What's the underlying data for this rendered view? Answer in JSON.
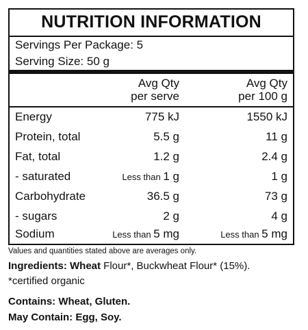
{
  "panel": {
    "title": "NUTRITION INFORMATION",
    "servings_per_package": "Servings Per Package: 5",
    "serving_size": "Serving Size: 50 g"
  },
  "columns": {
    "per_serve_line1": "Avg Qty",
    "per_serve_line2": "per serve",
    "per_100g_line1": "Avg Qty",
    "per_100g_line2": "per 100 g"
  },
  "rows": [
    {
      "label": "Energy",
      "serve_prefix": "",
      "serve": "775 kJ",
      "g100_prefix": "",
      "g100": "1550 kJ"
    },
    {
      "label": "Protein, total",
      "serve_prefix": "",
      "serve": "5.5 g",
      "g100_prefix": "",
      "g100": "11 g"
    },
    {
      "label": "Fat, total",
      "serve_prefix": "",
      "serve": "1.2 g",
      "g100_prefix": "",
      "g100": "2.4 g"
    },
    {
      "label": "- saturated",
      "serve_prefix": "Less than ",
      "serve": "1 g",
      "g100_prefix": "",
      "g100": "1 g"
    },
    {
      "label": "Carbohydrate",
      "serve_prefix": "",
      "serve": "36.5 g",
      "g100_prefix": "",
      "g100": "73 g"
    },
    {
      "label": "- sugars",
      "serve_prefix": "",
      "serve": "2 g",
      "g100_prefix": "",
      "g100": "4 g"
    },
    {
      "label": "Sodium",
      "serve_prefix": "Less than ",
      "serve": "5 mg",
      "g100_prefix": "Less than ",
      "g100": "5 mg"
    }
  ],
  "footnote": "Values and quantities stated above are averages only.",
  "ingredients": {
    "label": "Ingredients:",
    "wheat": "Wheat",
    "text": " Flour*, Buckwheat Flour* (15%).",
    "certified": "*certified organic"
  },
  "allergens": {
    "contains": "Contains: Wheat, Gluten.",
    "may_contain": "May Contain: Egg, Soy."
  }
}
